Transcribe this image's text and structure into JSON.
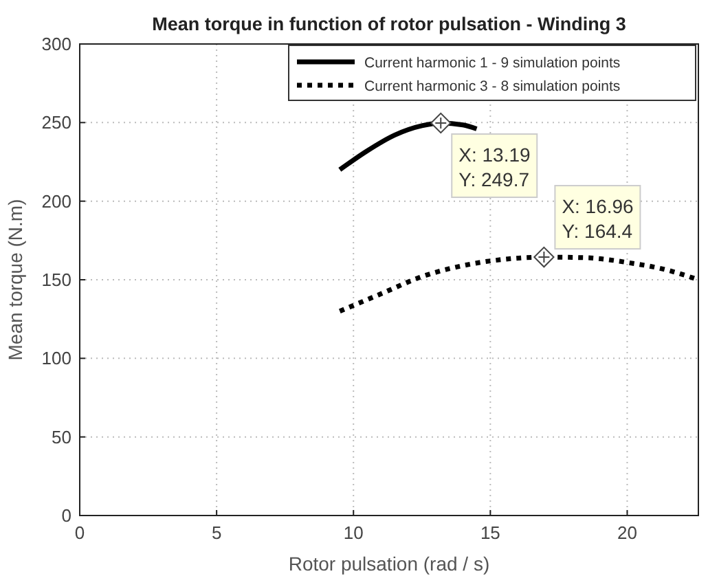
{
  "chart_data": {
    "type": "line",
    "title": "Mean torque in function of rotor pulsation - Winding 3",
    "xlabel": "Rotor pulsation (rad / s)",
    "ylabel": "Mean torque (N.m)",
    "series": [
      {
        "name": "Current harmonic 1 - 9 simulation points",
        "color": "#000000",
        "line_style": "solid",
        "x": [
          9.5,
          10.5,
          11.5,
          12.5,
          13.19,
          14,
          14.5
        ],
        "values": [
          220,
          232,
          242,
          248,
          249.7,
          248.5,
          246
        ]
      },
      {
        "name": "Current harmonic 3 - 8 simulation points",
        "color": "#000000",
        "line_style": "dotted",
        "x": [
          9.5,
          11,
          12.5,
          14,
          15.5,
          16.96,
          18.5,
          20,
          21.5,
          22.6
        ],
        "values": [
          130,
          141,
          152,
          159,
          163,
          164.4,
          164,
          161,
          156,
          150
        ]
      }
    ],
    "xlim": [
      0,
      22.6
    ],
    "xticks": [
      0,
      5,
      10,
      15,
      20
    ],
    "ylim": [
      0,
      300
    ],
    "yticks": [
      0,
      50,
      100,
      150,
      200,
      250,
      300
    ],
    "grid": true,
    "legend": "top right",
    "annotations": [
      {
        "text": "X: 13.19\nY: 249.7",
        "x": 13.19,
        "y": 249.7
      },
      {
        "text": "X: 16.96\nY: 164.4",
        "x": 16.96,
        "y": 164.4
      }
    ]
  }
}
